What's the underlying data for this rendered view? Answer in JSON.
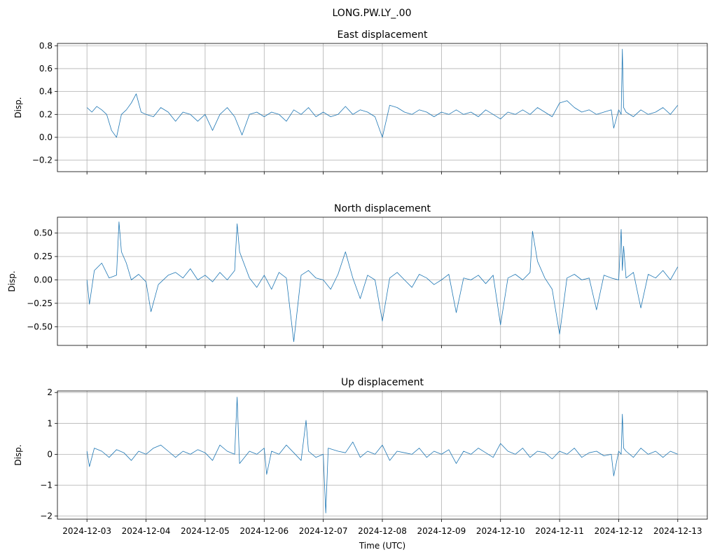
{
  "figure": {
    "suptitle": "LONG.PW.LY_.00",
    "xlabel": "Time (UTC)"
  },
  "chart_data": [
    {
      "type": "line",
      "title": "East displacement",
      "ylabel": "Disp.",
      "xlim": [
        "2024-12-02T12:00",
        "2024-12-13T12:00"
      ],
      "ylim": [
        -0.3,
        0.82
      ],
      "yticks": [
        -0.2,
        0.0,
        0.2,
        0.4,
        0.6,
        0.8
      ],
      "ytick_labels": [
        "−0.2",
        "0.0",
        "0.2",
        "0.4",
        "0.6",
        "0.8"
      ],
      "grid": true,
      "series": [
        {
          "color": "#1f77b4",
          "x": [
            "2024-12-03T00:00",
            "2024-12-03T02:00",
            "2024-12-03T04:00",
            "2024-12-03T06:00",
            "2024-12-03T08:00",
            "2024-12-03T10:00",
            "2024-12-03T12:00",
            "2024-12-03T14:00",
            "2024-12-03T16:00",
            "2024-12-03T18:00",
            "2024-12-03T20:00",
            "2024-12-03T22:00",
            "2024-12-04T00:00",
            "2024-12-04T03:00",
            "2024-12-04T06:00",
            "2024-12-04T09:00",
            "2024-12-04T12:00",
            "2024-12-04T15:00",
            "2024-12-04T18:00",
            "2024-12-04T21:00",
            "2024-12-05T00:00",
            "2024-12-05T03:00",
            "2024-12-05T06:00",
            "2024-12-05T09:00",
            "2024-12-05T12:00",
            "2024-12-05T15:00",
            "2024-12-05T18:00",
            "2024-12-05T21:00",
            "2024-12-06T00:00",
            "2024-12-06T03:00",
            "2024-12-06T06:00",
            "2024-12-06T09:00",
            "2024-12-06T12:00",
            "2024-12-06T15:00",
            "2024-12-06T18:00",
            "2024-12-06T21:00",
            "2024-12-07T00:00",
            "2024-12-07T03:00",
            "2024-12-07T06:00",
            "2024-12-07T09:00",
            "2024-12-07T12:00",
            "2024-12-07T15:00",
            "2024-12-07T18:00",
            "2024-12-07T21:00",
            "2024-12-08T00:00",
            "2024-12-08T03:00",
            "2024-12-08T06:00",
            "2024-12-08T09:00",
            "2024-12-08T12:00",
            "2024-12-08T15:00",
            "2024-12-08T18:00",
            "2024-12-08T21:00",
            "2024-12-09T00:00",
            "2024-12-09T03:00",
            "2024-12-09T06:00",
            "2024-12-09T09:00",
            "2024-12-09T12:00",
            "2024-12-09T15:00",
            "2024-12-09T18:00",
            "2024-12-09T21:00",
            "2024-12-10T00:00",
            "2024-12-10T03:00",
            "2024-12-10T06:00",
            "2024-12-10T09:00",
            "2024-12-10T12:00",
            "2024-12-10T15:00",
            "2024-12-10T18:00",
            "2024-12-10T21:00",
            "2024-12-11T00:00",
            "2024-12-11T03:00",
            "2024-12-11T06:00",
            "2024-12-11T09:00",
            "2024-12-11T12:00",
            "2024-12-11T15:00",
            "2024-12-11T18:00",
            "2024-12-11T21:00",
            "2024-12-11T22:00",
            "2024-12-12T00:00",
            "2024-12-12T01:00",
            "2024-12-12T01:30",
            "2024-12-12T02:00",
            "2024-12-12T03:00",
            "2024-12-12T06:00",
            "2024-12-12T09:00",
            "2024-12-12T12:00",
            "2024-12-12T15:00",
            "2024-12-12T18:00",
            "2024-12-12T21:00",
            "2024-12-13T00:00"
          ],
          "y": [
            0.26,
            0.22,
            0.27,
            0.24,
            0.2,
            0.06,
            0.0,
            0.2,
            0.24,
            0.3,
            0.38,
            0.22,
            0.2,
            0.18,
            0.26,
            0.22,
            0.14,
            0.22,
            0.2,
            0.14,
            0.2,
            0.06,
            0.2,
            0.26,
            0.18,
            0.02,
            0.2,
            0.22,
            0.18,
            0.22,
            0.2,
            0.14,
            0.24,
            0.2,
            0.26,
            0.18,
            0.22,
            0.18,
            0.2,
            0.27,
            0.2,
            0.24,
            0.22,
            0.18,
            0.0,
            0.28,
            0.26,
            0.22,
            0.2,
            0.24,
            0.22,
            0.18,
            0.22,
            0.2,
            0.24,
            0.2,
            0.22,
            0.18,
            0.24,
            0.2,
            0.16,
            0.22,
            0.2,
            0.24,
            0.2,
            0.26,
            0.22,
            0.18,
            0.3,
            0.32,
            0.26,
            0.22,
            0.24,
            0.2,
            0.22,
            0.24,
            0.08,
            0.24,
            0.2,
            0.77,
            0.26,
            0.22,
            0.18,
            0.24,
            0.2,
            0.22,
            0.26,
            0.2,
            0.28
          ]
        }
      ]
    },
    {
      "type": "line",
      "title": "North displacement",
      "ylabel": "Disp.",
      "xlim": [
        "2024-12-02T12:00",
        "2024-12-13T12:00"
      ],
      "ylim": [
        -0.7,
        0.67
      ],
      "yticks": [
        -0.5,
        -0.25,
        0.0,
        0.25,
        0.5
      ],
      "ytick_labels": [
        "−0.50",
        "−0.25",
        "0.00",
        "0.25",
        "0.50"
      ],
      "grid": true,
      "series": [
        {
          "color": "#1f77b4",
          "x": [
            "2024-12-03T00:00",
            "2024-12-03T01:00",
            "2024-12-03T03:00",
            "2024-12-03T06:00",
            "2024-12-03T09:00",
            "2024-12-03T12:00",
            "2024-12-03T13:00",
            "2024-12-03T14:00",
            "2024-12-03T16:00",
            "2024-12-03T18:00",
            "2024-12-03T21:00",
            "2024-12-04T00:00",
            "2024-12-04T02:00",
            "2024-12-04T05:00",
            "2024-12-04T09:00",
            "2024-12-04T12:00",
            "2024-12-04T15:00",
            "2024-12-04T18:00",
            "2024-12-04T21:00",
            "2024-12-05T00:00",
            "2024-12-05T03:00",
            "2024-12-05T06:00",
            "2024-12-05T09:00",
            "2024-12-05T12:00",
            "2024-12-05T13:00",
            "2024-12-05T14:00",
            "2024-12-05T18:00",
            "2024-12-05T21:00",
            "2024-12-06T00:00",
            "2024-12-06T03:00",
            "2024-12-06T06:00",
            "2024-12-06T09:00",
            "2024-12-06T12:00",
            "2024-12-06T15:00",
            "2024-12-06T18:00",
            "2024-12-06T21:00",
            "2024-12-07T00:00",
            "2024-12-07T03:00",
            "2024-12-07T06:00",
            "2024-12-07T09:00",
            "2024-12-07T12:00",
            "2024-12-07T15:00",
            "2024-12-07T18:00",
            "2024-12-07T21:00",
            "2024-12-08T00:00",
            "2024-12-08T03:00",
            "2024-12-08T06:00",
            "2024-12-08T09:00",
            "2024-12-08T12:00",
            "2024-12-08T15:00",
            "2024-12-08T18:00",
            "2024-12-08T21:00",
            "2024-12-09T00:00",
            "2024-12-09T03:00",
            "2024-12-09T06:00",
            "2024-12-09T09:00",
            "2024-12-09T12:00",
            "2024-12-09T15:00",
            "2024-12-09T18:00",
            "2024-12-09T21:00",
            "2024-12-10T00:00",
            "2024-12-10T03:00",
            "2024-12-10T06:00",
            "2024-12-10T09:00",
            "2024-12-10T12:00",
            "2024-12-10T13:00",
            "2024-12-10T15:00",
            "2024-12-10T18:00",
            "2024-12-10T21:00",
            "2024-12-11T00:00",
            "2024-12-11T03:00",
            "2024-12-11T06:00",
            "2024-12-11T09:00",
            "2024-12-11T12:00",
            "2024-12-11T15:00",
            "2024-12-11T18:00",
            "2024-12-11T21:00",
            "2024-12-12T00:00",
            "2024-12-12T01:00",
            "2024-12-12T01:30",
            "2024-12-12T02:00",
            "2024-12-12T03:00",
            "2024-12-12T06:00",
            "2024-12-12T09:00",
            "2024-12-12T12:00",
            "2024-12-12T15:00",
            "2024-12-12T18:00",
            "2024-12-12T21:00",
            "2024-12-13T00:00"
          ],
          "y": [
            0.0,
            -0.26,
            0.1,
            0.18,
            0.02,
            0.05,
            0.62,
            0.3,
            0.18,
            0.0,
            0.06,
            -0.02,
            -0.34,
            -0.05,
            0.05,
            0.08,
            0.02,
            0.12,
            0.0,
            0.05,
            -0.02,
            0.08,
            0.0,
            0.1,
            0.6,
            0.3,
            0.02,
            -0.08,
            0.05,
            -0.1,
            0.08,
            0.02,
            -0.66,
            0.05,
            0.1,
            0.02,
            0.0,
            -0.1,
            0.06,
            0.3,
            0.02,
            -0.2,
            0.05,
            0.0,
            -0.44,
            0.02,
            0.08,
            0.0,
            -0.08,
            0.06,
            0.02,
            -0.05,
            0.0,
            0.06,
            -0.35,
            0.02,
            0.0,
            0.05,
            -0.04,
            0.05,
            -0.48,
            0.02,
            0.06,
            0.0,
            0.08,
            0.52,
            0.2,
            0.02,
            -0.1,
            -0.58,
            0.02,
            0.06,
            0.0,
            0.02,
            -0.32,
            0.05,
            0.02,
            0.0,
            0.54,
            0.1,
            0.36,
            0.02,
            0.08,
            -0.3,
            0.06,
            0.02,
            0.1,
            0.0,
            0.14
          ]
        }
      ]
    },
    {
      "type": "line",
      "title": "Up displacement",
      "ylabel": "Disp.",
      "xlim": [
        "2024-12-02T12:00",
        "2024-12-13T12:00"
      ],
      "ylim": [
        -2.1,
        2.05
      ],
      "yticks": [
        -2,
        -1,
        0,
        1,
        2
      ],
      "ytick_labels": [
        "−2",
        "−1",
        "0",
        "1",
        "2"
      ],
      "grid": true,
      "series": [
        {
          "color": "#1f77b4",
          "x": [
            "2024-12-03T00:00",
            "2024-12-03T01:00",
            "2024-12-03T03:00",
            "2024-12-03T06:00",
            "2024-12-03T09:00",
            "2024-12-03T12:00",
            "2024-12-03T15:00",
            "2024-12-03T18:00",
            "2024-12-03T21:00",
            "2024-12-04T00:00",
            "2024-12-04T03:00",
            "2024-12-04T06:00",
            "2024-12-04T09:00",
            "2024-12-04T12:00",
            "2024-12-04T15:00",
            "2024-12-04T18:00",
            "2024-12-04T21:00",
            "2024-12-05T00:00",
            "2024-12-05T03:00",
            "2024-12-05T06:00",
            "2024-12-05T09:00",
            "2024-12-05T12:00",
            "2024-12-05T13:00",
            "2024-12-05T14:00",
            "2024-12-05T18:00",
            "2024-12-05T21:00",
            "2024-12-06T00:00",
            "2024-12-06T01:00",
            "2024-12-06T03:00",
            "2024-12-06T06:00",
            "2024-12-06T09:00",
            "2024-12-06T12:00",
            "2024-12-06T15:00",
            "2024-12-06T17:00",
            "2024-12-06T18:00",
            "2024-12-06T21:00",
            "2024-12-07T00:00",
            "2024-12-07T01:00",
            "2024-12-07T02:00",
            "2024-12-07T06:00",
            "2024-12-07T09:00",
            "2024-12-07T12:00",
            "2024-12-07T15:00",
            "2024-12-07T18:00",
            "2024-12-07T21:00",
            "2024-12-08T00:00",
            "2024-12-08T03:00",
            "2024-12-08T06:00",
            "2024-12-08T09:00",
            "2024-12-08T12:00",
            "2024-12-08T15:00",
            "2024-12-08T18:00",
            "2024-12-08T21:00",
            "2024-12-09T00:00",
            "2024-12-09T03:00",
            "2024-12-09T06:00",
            "2024-12-09T09:00",
            "2024-12-09T12:00",
            "2024-12-09T15:00",
            "2024-12-09T18:00",
            "2024-12-09T21:00",
            "2024-12-10T00:00",
            "2024-12-10T03:00",
            "2024-12-10T06:00",
            "2024-12-10T09:00",
            "2024-12-10T12:00",
            "2024-12-10T15:00",
            "2024-12-10T18:00",
            "2024-12-10T21:00",
            "2024-12-11T00:00",
            "2024-12-11T03:00",
            "2024-12-11T06:00",
            "2024-12-11T09:00",
            "2024-12-11T12:00",
            "2024-12-11T15:00",
            "2024-12-11T18:00",
            "2024-12-11T21:00",
            "2024-12-11T22:00",
            "2024-12-12T00:00",
            "2024-12-12T01:00",
            "2024-12-12T01:30",
            "2024-12-12T02:00",
            "2024-12-12T03:00",
            "2024-12-12T06:00",
            "2024-12-12T09:00",
            "2024-12-12T12:00",
            "2024-12-12T15:00",
            "2024-12-12T18:00",
            "2024-12-12T21:00",
            "2024-12-13T00:00"
          ],
          "y": [
            0.1,
            -0.4,
            0.2,
            0.1,
            -0.1,
            0.15,
            0.05,
            -0.2,
            0.1,
            0.0,
            0.2,
            0.3,
            0.1,
            -0.1,
            0.1,
            0.0,
            0.15,
            0.05,
            -0.2,
            0.3,
            0.1,
            0.0,
            1.85,
            -0.3,
            0.1,
            0.0,
            0.2,
            -0.65,
            0.1,
            0.0,
            0.3,
            0.05,
            -0.2,
            1.1,
            0.1,
            -0.1,
            0.0,
            -1.9,
            0.2,
            0.1,
            0.05,
            0.4,
            -0.1,
            0.1,
            0.0,
            0.3,
            -0.2,
            0.1,
            0.05,
            0.0,
            0.2,
            -0.1,
            0.1,
            0.0,
            0.15,
            -0.3,
            0.1,
            0.0,
            0.2,
            0.05,
            -0.1,
            0.35,
            0.1,
            0.0,
            0.2,
            -0.1,
            0.1,
            0.05,
            -0.15,
            0.1,
            0.0,
            0.2,
            -0.1,
            0.05,
            0.1,
            -0.05,
            0.0,
            -0.7,
            0.1,
            0.0,
            1.3,
            0.2,
            0.1,
            -0.1,
            0.2,
            0.0,
            0.1,
            -0.1,
            0.1,
            0.0
          ]
        }
      ]
    }
  ],
  "xaxis": {
    "ticks": [
      "2024-12-03",
      "2024-12-04",
      "2024-12-05",
      "2024-12-06",
      "2024-12-07",
      "2024-12-08",
      "2024-12-09",
      "2024-12-10",
      "2024-12-11",
      "2024-12-12",
      "2024-12-13"
    ],
    "tick_labels": [
      "2024-12-03",
      "2024-12-04",
      "2024-12-05",
      "2024-12-06",
      "2024-12-07",
      "2024-12-08",
      "2024-12-09",
      "2024-12-10",
      "2024-12-11",
      "2024-12-12",
      "2024-12-13"
    ]
  }
}
